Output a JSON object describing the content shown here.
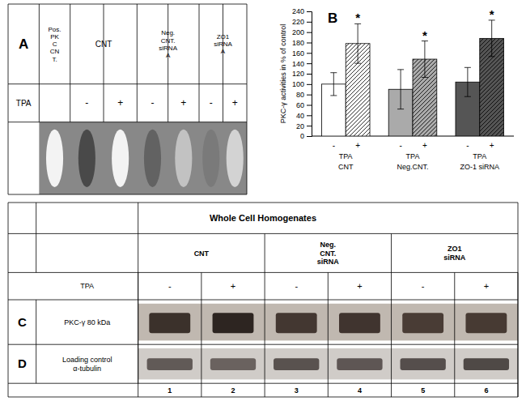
{
  "chart_data": [
    {
      "type": "gel",
      "title": "A",
      "col_headers": [
        "Pos.\nPK\nC\nCN\nT.",
        "CNT",
        "Neg.\nCNT.\nsiRNA\nA",
        "ZO1\nsiRNA\nA"
      ],
      "row_label": "TPA",
      "categories": [
        null,
        "-",
        "+",
        "-",
        "+",
        "-",
        "+"
      ],
      "values": [
        0.95,
        0.25,
        0.95,
        0.35,
        0.75,
        0.45,
        0.82
      ],
      "color": "#888888"
    },
    {
      "type": "bar",
      "title": "B",
      "ylabel": "PKC-γ activities in % of control",
      "categories": [
        "CNT",
        "Neg.CNT.",
        "ZO-1 siRNA"
      ],
      "group_label": "TPA",
      "series": [
        {
          "name": "-",
          "values": [
            100,
            90,
            104
          ],
          "errors": [
            22,
            38,
            28
          ],
          "colors": [
            "#ffffff",
            "#aaaaaa",
            "#555555"
          ]
        },
        {
          "name": "+",
          "values": [
            178,
            148,
            188
          ],
          "errors": [
            38,
            35,
            35
          ],
          "colors": [
            "#ffffff",
            "#aaaaaa",
            "#555555"
          ],
          "annotation": "*"
        }
      ],
      "ylim": [
        0,
        240
      ],
      "yticks": [
        0,
        20,
        40,
        60,
        80,
        100,
        120,
        140,
        160,
        180,
        200,
        220,
        240
      ]
    },
    {
      "type": "gel",
      "title": "Whole Cell Homogenates",
      "col_headers": [
        "CNT",
        "Neg.\nCNT.\nsiRNA",
        "ZO1\nsiRNA"
      ],
      "row_label": "TPA",
      "categories": [
        "-",
        "+",
        "-",
        "+",
        "-",
        "+"
      ],
      "rows": [
        {
          "label": "C",
          "name": "PKC-γ 80 kDa",
          "color": "#c0b8b0",
          "values": [
            0.72,
            0.85,
            0.65,
            0.68,
            0.6,
            0.62
          ]
        },
        {
          "label": "D",
          "name": "Loading control\nα-tubulin",
          "color": "#d0ccc8",
          "values": [
            0.55,
            0.48,
            0.62,
            0.58,
            0.65,
            0.7
          ]
        }
      ],
      "lane_numbers": [
        "1",
        "2",
        "3",
        "4",
        "5",
        "6"
      ]
    }
  ]
}
